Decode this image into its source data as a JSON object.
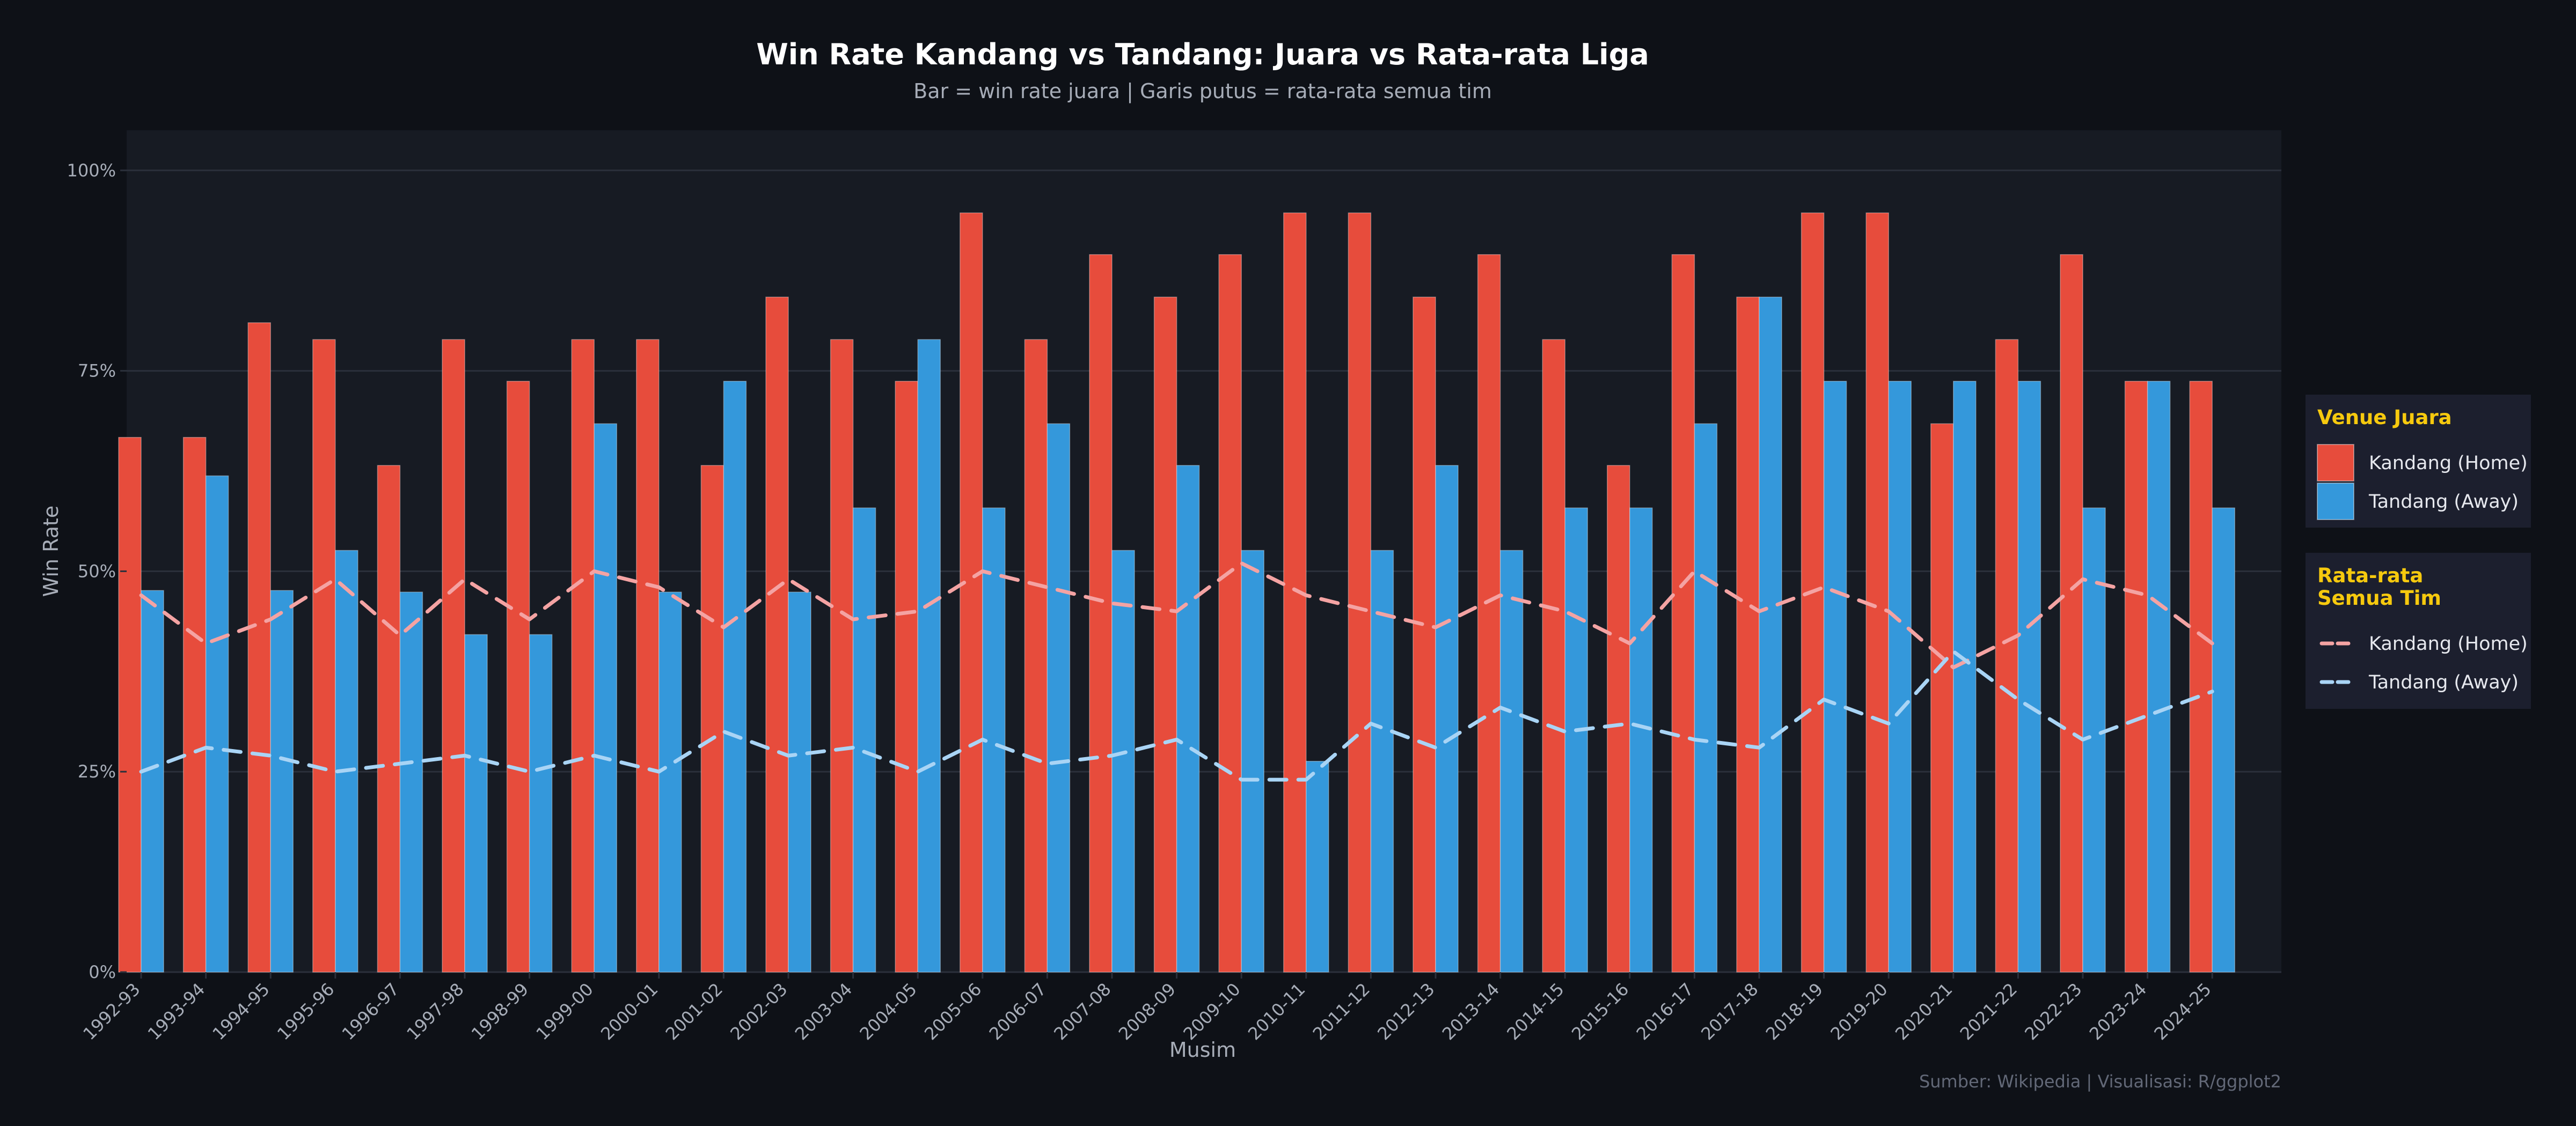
{
  "chart_data": {
    "type": "bar",
    "title": "Win Rate Kandang vs Tandang: Juara vs Rata-rata Liga",
    "subtitle": "Bar = win rate juara | Garis putus = rata-rata semua tim",
    "xlabel": "Musim",
    "ylabel": "Win Rate",
    "caption": "Sumber: Wikipedia | Visualisasi: R/ggplot2",
    "ylim": [
      0,
      1.05
    ],
    "yticks": [
      0,
      0.25,
      0.5,
      0.75,
      1.0
    ],
    "ytick_labels": [
      "0%",
      "25%",
      "50%",
      "75%",
      "100%"
    ],
    "grid": true,
    "legend_position": "right",
    "categories": [
      "1992-93",
      "1993-94",
      "1994-95",
      "1995-96",
      "1996-97",
      "1997-98",
      "1998-99",
      "1999-00",
      "2000-01",
      "2001-02",
      "2002-03",
      "2003-04",
      "2004-05",
      "2005-06",
      "2006-07",
      "2007-08",
      "2008-09",
      "2009-10",
      "2010-11",
      "2011-12",
      "2012-13",
      "2013-14",
      "2014-15",
      "2015-16",
      "2016-17",
      "2017-18",
      "2018-19",
      "2019-20",
      "2020-21",
      "2021-22",
      "2022-23",
      "2023-24",
      "2024-25"
    ],
    "series": [
      {
        "name": "Kandang (Home)",
        "kind": "bar",
        "color": "#e74c3c",
        "values": [
          0.667,
          0.667,
          0.81,
          0.789,
          0.632,
          0.789,
          0.737,
          0.789,
          0.789,
          0.632,
          0.842,
          0.789,
          0.737,
          0.947,
          0.789,
          0.895,
          0.842,
          0.895,
          0.947,
          0.947,
          0.842,
          0.895,
          0.789,
          0.632,
          0.895,
          0.842,
          0.947,
          0.947,
          0.684,
          0.789,
          0.895,
          0.737,
          0.737
        ]
      },
      {
        "name": "Tandang (Away)",
        "kind": "bar",
        "color": "#3498db",
        "values": [
          0.476,
          0.619,
          0.476,
          0.526,
          0.474,
          0.421,
          0.421,
          0.684,
          0.474,
          0.737,
          0.474,
          0.579,
          0.789,
          0.579,
          0.684,
          0.526,
          0.632,
          0.526,
          0.263,
          0.526,
          0.632,
          0.526,
          0.579,
          0.579,
          0.684,
          0.842,
          0.737,
          0.737,
          0.737,
          0.737,
          0.579,
          0.737,
          0.579
        ]
      },
      {
        "name": "Kandang (Home)",
        "kind": "line",
        "color": "#f4a3a3",
        "values": [
          0.47,
          0.41,
          0.44,
          0.49,
          0.42,
          0.49,
          0.44,
          0.5,
          0.48,
          0.43,
          0.49,
          0.44,
          0.45,
          0.5,
          0.48,
          0.46,
          0.45,
          0.51,
          0.47,
          0.45,
          0.43,
          0.47,
          0.45,
          0.41,
          0.5,
          0.45,
          0.48,
          0.45,
          0.38,
          0.42,
          0.49,
          0.47,
          0.41
        ]
      },
      {
        "name": "Tandang (Away)",
        "kind": "line",
        "color": "#a9d4f5",
        "values": [
          0.25,
          0.28,
          0.27,
          0.25,
          0.26,
          0.27,
          0.25,
          0.27,
          0.25,
          0.3,
          0.27,
          0.28,
          0.25,
          0.29,
          0.26,
          0.27,
          0.29,
          0.24,
          0.24,
          0.31,
          0.28,
          0.33,
          0.3,
          0.31,
          0.29,
          0.28,
          0.34,
          0.31,
          0.4,
          0.34,
          0.29,
          0.32,
          0.35
        ]
      }
    ],
    "legend": [
      {
        "title": "Venue Juara",
        "items": [
          {
            "label": "Kandang (Home)",
            "color": "#e74c3c"
          },
          {
            "label": "Tandang (Away)",
            "color": "#3498db"
          }
        ]
      },
      {
        "title": "Rata-rata\nSemua Tim",
        "items": [
          {
            "label": "Kandang (Home)",
            "color": "#f4a3a3"
          },
          {
            "label": "Tandang (Away)",
            "color": "#a9d4f5"
          }
        ]
      }
    ]
  },
  "colors": {
    "background": "#0e1117",
    "panel": "#171b23",
    "grid": "#2b303b",
    "legend_bg": "#1c1f2e"
  }
}
